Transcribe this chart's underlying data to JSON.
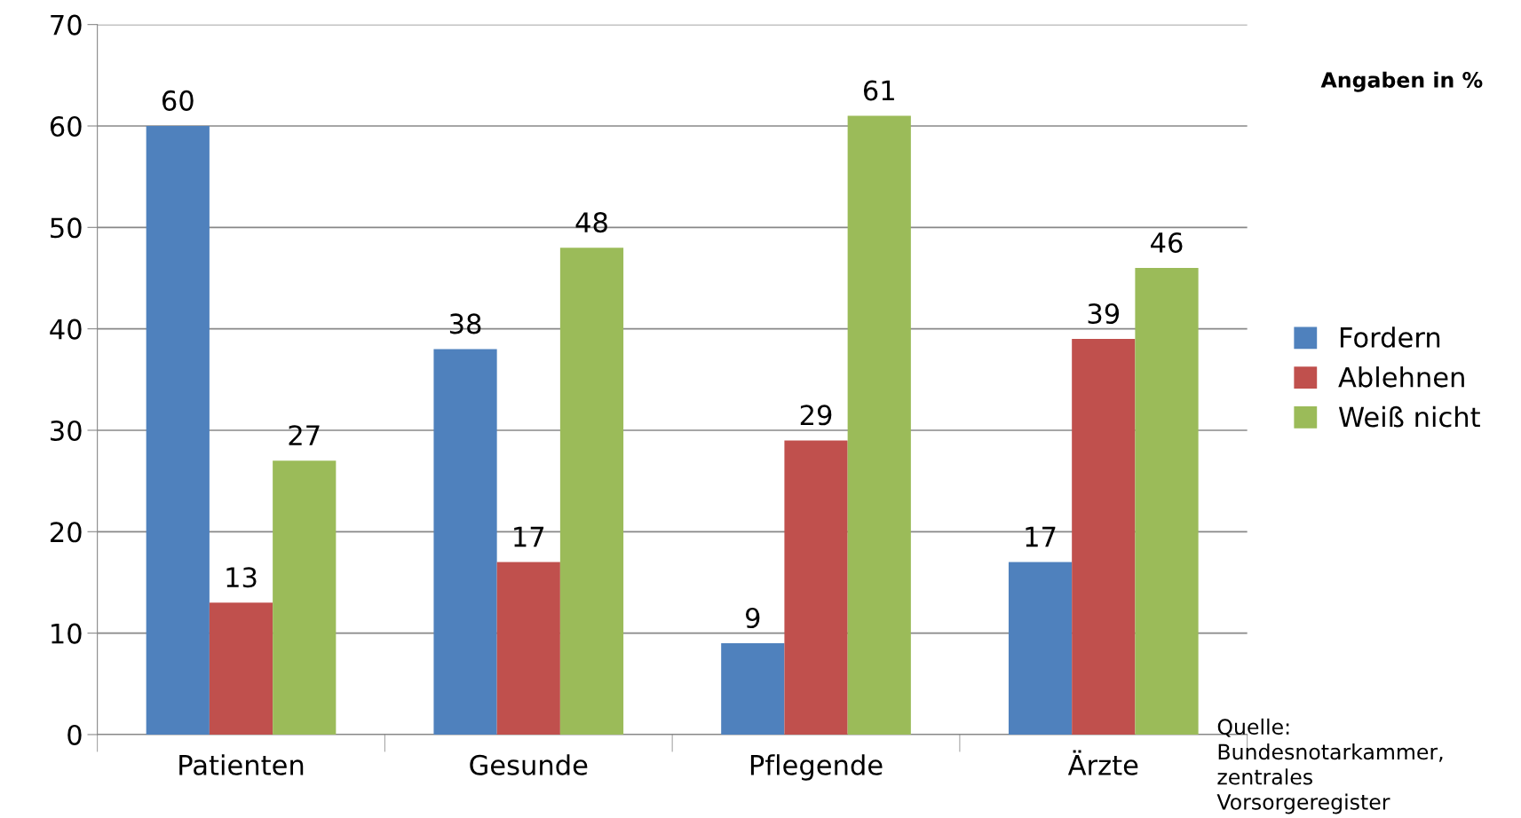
{
  "chart_data": {
    "type": "bar",
    "categories": [
      "Patienten",
      "Gesunde",
      "Pflegende",
      "Ärzte"
    ],
    "series": [
      {
        "name": "Fordern",
        "color": "#4f81bd",
        "values": [
          60,
          38,
          9,
          17
        ]
      },
      {
        "name": "Ablehnen",
        "color": "#c0504d",
        "values": [
          13,
          17,
          29,
          39
        ]
      },
      {
        "name": "Weiß nicht",
        "color": "#9bbb59",
        "values": [
          27,
          48,
          61,
          46
        ]
      }
    ],
    "ylim": [
      0,
      70
    ],
    "yticks": [
      0,
      10,
      20,
      30,
      40,
      50,
      60,
      70
    ],
    "grid": "y",
    "legend": "right",
    "data_labels": true,
    "annotations": [
      "Angaben in %",
      "Quelle:\nBundesnotarkammer,\nzentrales\nVorsorgeregister"
    ]
  }
}
